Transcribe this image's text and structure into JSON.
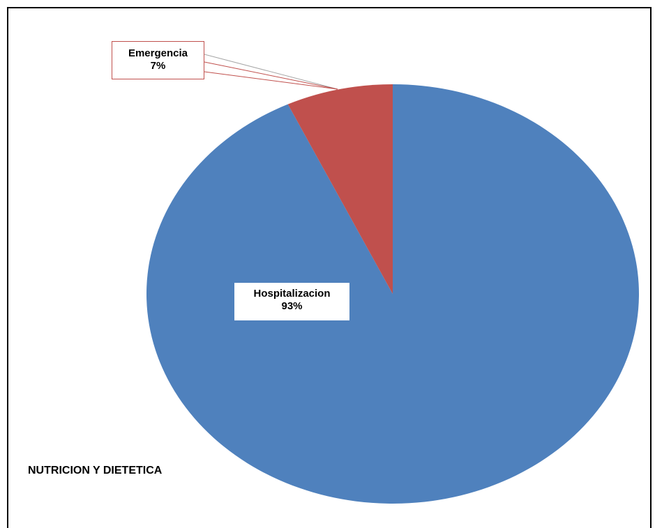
{
  "chart_data": {
    "type": "pie",
    "categories": [
      "Hospitalizacion",
      "Emergencia"
    ],
    "values": [
      93,
      7
    ],
    "value_labels": [
      "93%",
      "7%"
    ],
    "colors": [
      "#4f81bd",
      "#c0504d"
    ],
    "legend": "none",
    "category_label": "NUTRICION Y DIETETICA"
  }
}
